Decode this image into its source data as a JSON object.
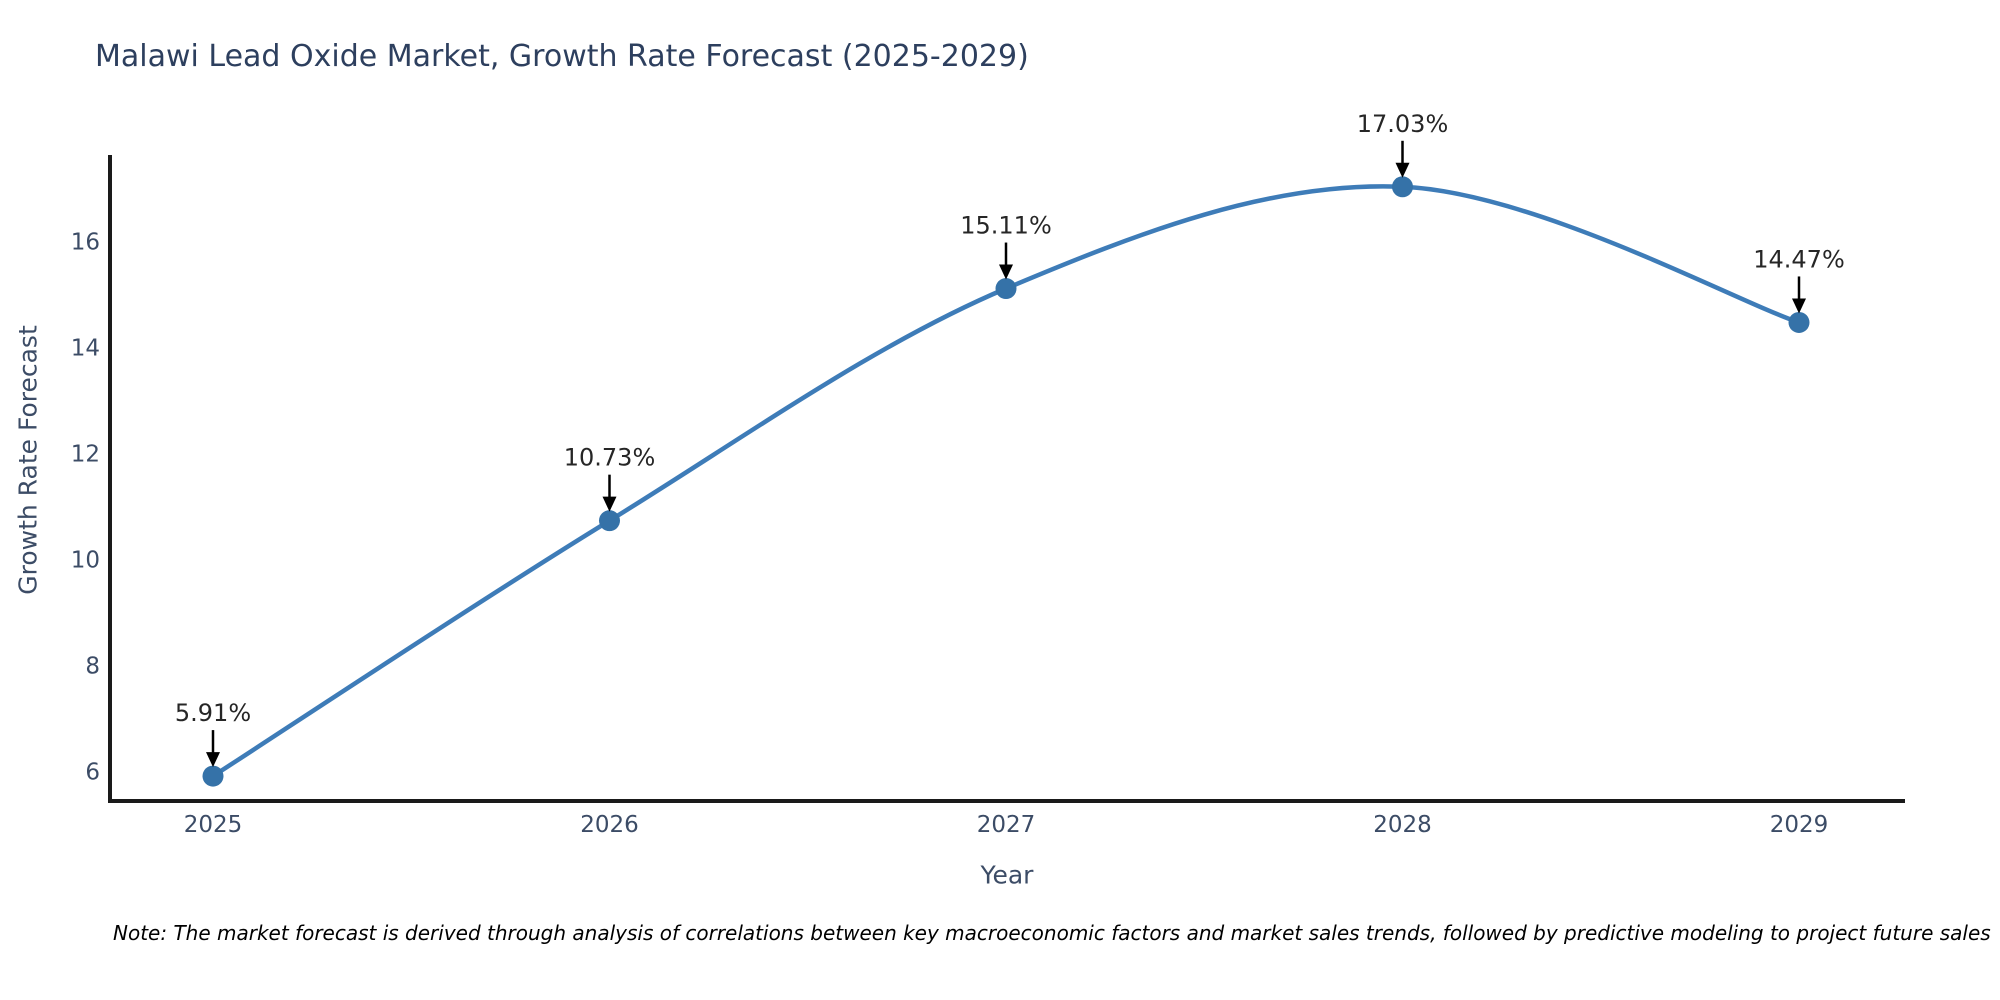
{
  "note": "Note: The market forecast is derived through analysis of correlations between key macroeconomic factors and market sales trends, followed by predictive modeling to project future sales",
  "chart_data": {
    "type": "line",
    "title": "Malawi Lead Oxide Market, Growth Rate Forecast (2025-2029)",
    "xlabel": "Year",
    "ylabel": "Growth Rate Forecast",
    "categories": [
      "2025",
      "2026",
      "2027",
      "2028",
      "2029"
    ],
    "series": [
      {
        "name": "Growth Rate Forecast",
        "values": [
          5.91,
          10.73,
          15.11,
          17.03,
          14.47
        ]
      }
    ],
    "point_labels": [
      "5.91%",
      "10.73%",
      "15.11%",
      "17.03%",
      "14.47%"
    ],
    "yticks": [
      6,
      8,
      10,
      12,
      14,
      16
    ],
    "ylim": [
      5.44,
      17.63
    ],
    "grid": false,
    "legend": false,
    "line_shape": "spline",
    "annotation_style": "label-above-with-down-arrow",
    "colors": {
      "line": "#3e7cb8",
      "marker": "#3572a8",
      "axis": "#1a1a1a",
      "tick_text": "#3c4c66",
      "title_text": "#2d3f5e",
      "annotation_text": "#262626",
      "arrow": "#000000",
      "background": "#ffffff"
    }
  }
}
